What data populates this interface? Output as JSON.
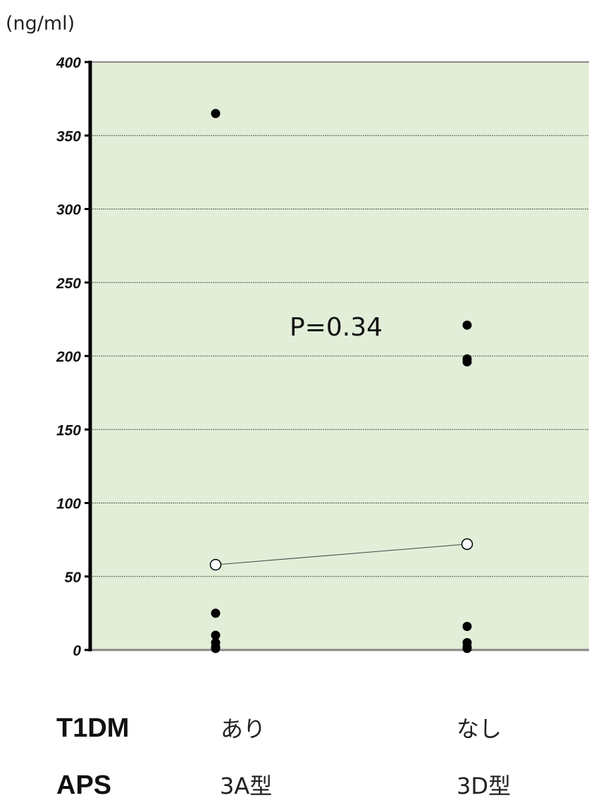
{
  "chart_data": {
    "type": "scatter",
    "unit_label": "(ng/ml)",
    "ylim": [
      0,
      400
    ],
    "y_ticks": [
      0,
      50,
      100,
      150,
      200,
      250,
      300,
      350,
      400
    ],
    "grid": true,
    "background": "#e2eed8",
    "categories": [
      "あり",
      "なし"
    ],
    "points": [
      {
        "x": 0,
        "y": 365
      },
      {
        "x": 0,
        "y": 25
      },
      {
        "x": 0,
        "y": 10
      },
      {
        "x": 0,
        "y": 5
      },
      {
        "x": 0,
        "y": 2
      },
      {
        "x": 0,
        "y": 1
      },
      {
        "x": 1,
        "y": 221
      },
      {
        "x": 1,
        "y": 198
      },
      {
        "x": 1,
        "y": 196
      },
      {
        "x": 1,
        "y": 16
      },
      {
        "x": 1,
        "y": 5
      },
      {
        "x": 1,
        "y": 2
      },
      {
        "x": 1,
        "y": 1
      }
    ],
    "mean_points": [
      {
        "x": 0,
        "y": 58
      },
      {
        "x": 1,
        "y": 72
      }
    ],
    "annotation": "P=0.34",
    "rows": [
      {
        "header": "T1DM",
        "values": [
          "あり",
          "なし"
        ]
      },
      {
        "header": "APS",
        "values": [
          "3A型",
          "3D型"
        ]
      }
    ]
  }
}
